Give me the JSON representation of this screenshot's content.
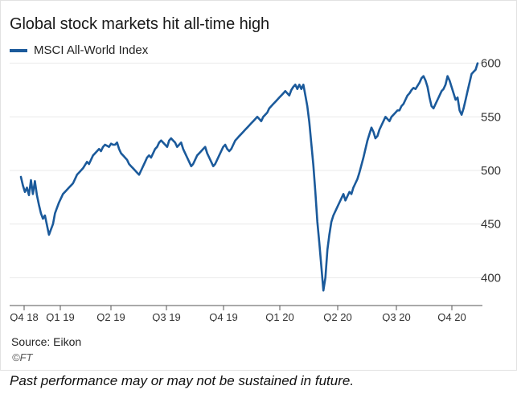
{
  "header": {
    "title": "Global stock markets hit all-time high"
  },
  "legend": {
    "label": "MSCI All-World Index"
  },
  "footer": {
    "source": "Source: Eikon",
    "brand": "©FT",
    "note": "Past performance may or may not be sustained in future."
  },
  "colors": {
    "line": "#1b5a9b",
    "grid": "#e9e9e9",
    "axis": "#333333"
  },
  "chart_data": {
    "type": "line",
    "title": "Global stock markets hit all-time high",
    "series": [
      {
        "name": "MSCI All-World Index",
        "values": [
          494,
          486,
          480,
          484,
          477,
          491,
          478,
          490,
          477,
          468,
          460,
          455,
          458,
          449,
          440,
          445,
          450,
          460,
          465,
          470,
          474,
          478,
          480,
          482,
          484,
          486,
          488,
          492,
          496,
          498,
          500,
          502,
          505,
          508,
          506,
          510,
          514,
          516,
          518,
          520,
          518,
          522,
          524,
          523,
          522,
          525,
          524,
          524,
          526,
          520,
          516,
          514,
          512,
          510,
          506,
          504,
          502,
          500,
          498,
          496,
          500,
          504,
          508,
          512,
          514,
          512,
          516,
          520,
          522,
          526,
          528,
          526,
          524,
          522,
          528,
          530,
          528,
          526,
          522,
          524,
          526,
          520,
          516,
          512,
          508,
          504,
          506,
          510,
          514,
          516,
          518,
          520,
          522,
          516,
          512,
          508,
          504,
          506,
          510,
          514,
          518,
          522,
          524,
          520,
          518,
          520,
          524,
          528,
          530,
          532,
          534,
          536,
          538,
          540,
          542,
          544,
          546,
          548,
          550,
          548,
          546,
          550,
          552,
          554,
          558,
          560,
          562,
          564,
          566,
          568,
          570,
          572,
          574,
          572,
          570,
          575,
          578,
          580,
          576,
          580,
          576,
          580,
          570,
          560,
          545,
          525,
          505,
          480,
          452,
          432,
          410,
          388,
          400,
          426,
          440,
          452,
          458,
          462,
          466,
          470,
          474,
          478,
          472,
          476,
          480,
          478,
          484,
          488,
          492,
          498,
          505,
          512,
          520,
          528,
          534,
          540,
          536,
          530,
          532,
          538,
          542,
          546,
          550,
          548,
          546,
          550,
          552,
          554,
          556,
          556,
          560,
          562,
          566,
          570,
          572,
          575,
          577,
          576,
          579,
          582,
          586,
          588,
          584,
          578,
          568,
          560,
          558,
          562,
          566,
          570,
          574,
          576,
          580,
          588,
          584,
          578,
          572,
          566,
          568,
          556,
          552,
          558,
          566,
          574,
          582,
          590,
          592,
          594,
          600
        ]
      }
    ],
    "x_ticks": [
      "Q4 18",
      "Q1 19",
      "Q2 19",
      "Q3 19",
      "Q4 19",
      "Q1 20",
      "Q2 20",
      "Q3 20",
      "Q4 20"
    ],
    "y_ticks": [
      400,
      450,
      500,
      550,
      600
    ],
    "ylim": [
      380,
      605
    ],
    "grid": true,
    "y_axis_position": "right",
    "legend_position": "top-left"
  }
}
